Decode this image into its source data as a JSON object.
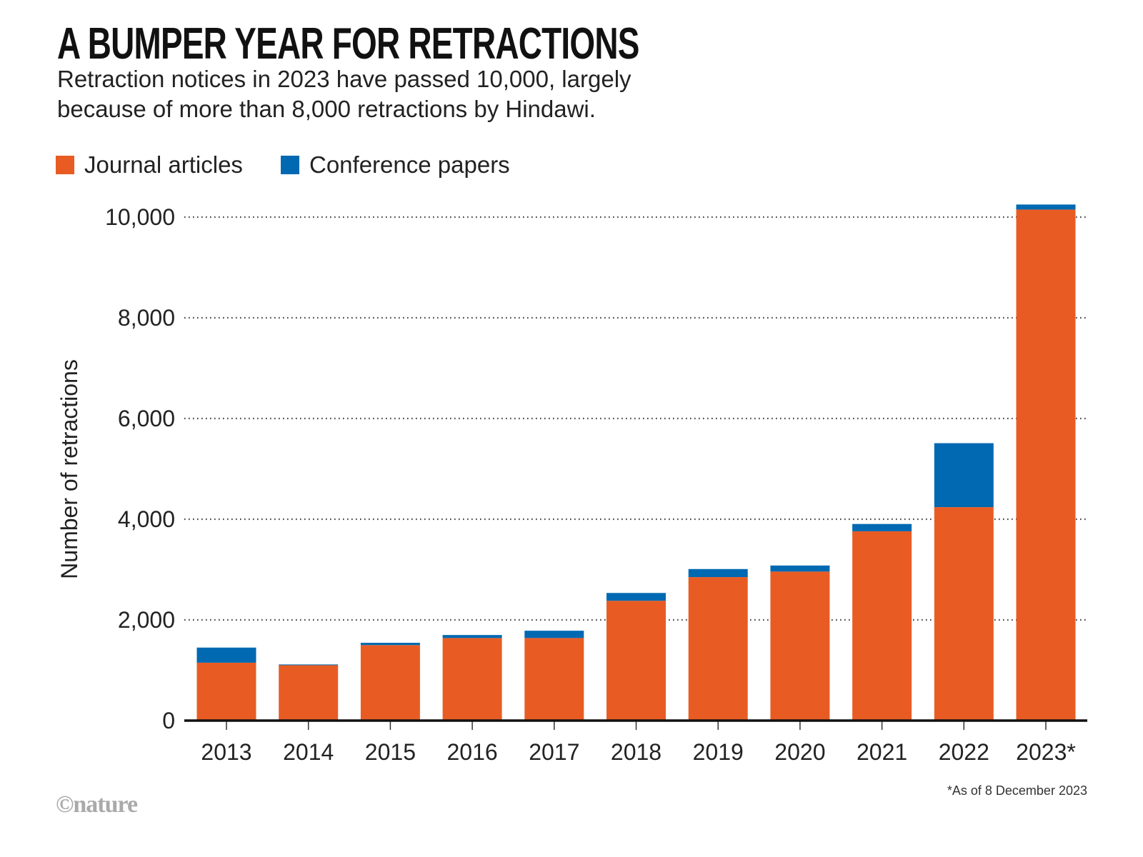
{
  "title": "A BUMPER YEAR FOR RETRACTIONS",
  "subtitle_lines": [
    "Retraction notices in 2023 have passed 10,000, largely",
    "because of more than 8,000 retractions by Hindawi."
  ],
  "footnote": "*As of 8 December 2023",
  "logo": "©nature",
  "colors": {
    "journal": "#E85C24",
    "conference": "#0069B2"
  },
  "chart_data": {
    "type": "bar",
    "stacked": true,
    "title": "A BUMPER YEAR FOR RETRACTIONS",
    "xlabel": "",
    "ylabel": "Number of retractions",
    "ylim": [
      0,
      10000
    ],
    "yticks": [
      0,
      2000,
      4000,
      6000,
      8000,
      10000
    ],
    "ytick_labels": [
      "0",
      "2,000",
      "4,000",
      "6,000",
      "8,000",
      "10,000"
    ],
    "grid": "horizontal dotted",
    "legend_placement": "top-left",
    "categories": [
      "2013",
      "2014",
      "2015",
      "2016",
      "2017",
      "2018",
      "2019",
      "2020",
      "2021",
      "2022",
      "2023*"
    ],
    "series": [
      {
        "name": "Journal articles",
        "color": "#E85C24",
        "values": [
          1150,
          1100,
          1500,
          1640,
          1640,
          2380,
          2850,
          2960,
          3760,
          4240,
          10150
        ]
      },
      {
        "name": "Conference papers",
        "color": "#0069B2",
        "values": [
          300,
          15,
          45,
          60,
          145,
          155,
          160,
          120,
          145,
          1270,
          100
        ]
      }
    ]
  }
}
